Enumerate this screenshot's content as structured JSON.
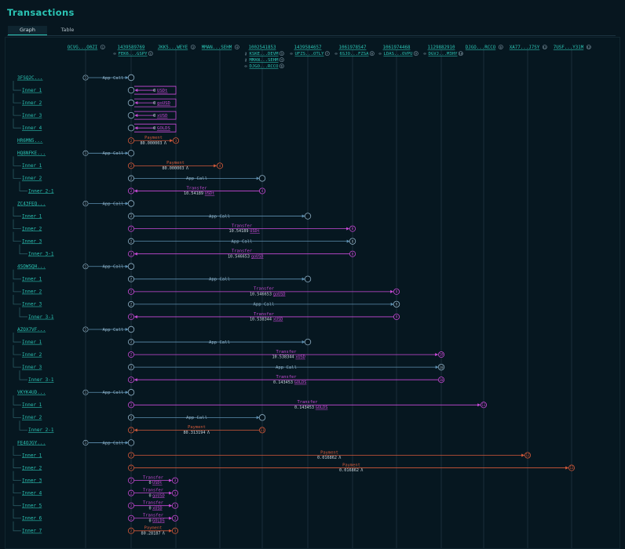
{
  "title": "Transactions",
  "tabs": [
    {
      "label": "Graph",
      "active": true
    },
    {
      "label": "Table",
      "active": false
    }
  ],
  "colors": {
    "accent": "#2bc4b4",
    "app_call": "#5d8fb0",
    "transfer": "#c94ad8",
    "payment": "#d45a3a",
    "lane": "#1a2e3a"
  },
  "accounts": [
    {
      "id": "OCVG...O0ZI",
      "num": "1"
    },
    {
      "id": "1439589769",
      "sub": [
        {
          "icon": "link-icon",
          "text": "FEK6...GSPY",
          "num": "2"
        }
      ]
    },
    {
      "id": "JKK5...WEYE",
      "num": "3"
    },
    {
      "id": "MMAN...SEHM",
      "num": "4"
    },
    {
      "id": "1002541853",
      "sub": [
        {
          "icon": "key-icon",
          "text": "KSKE...DEVM",
          "num": "5"
        },
        {
          "icon": "key-icon",
          "text": "MMAN...SEHM",
          "num": "4"
        },
        {
          "icon": "link-icon",
          "text": "DJGO...RCCO",
          "num": "6"
        }
      ]
    },
    {
      "id": "1439584657",
      "sub": [
        {
          "icon": "link-icon",
          "text": "UFZS...OTLY",
          "num": "7"
        }
      ]
    },
    {
      "id": "1061978547",
      "sub": [
        {
          "icon": "link-icon",
          "text": "6SJO...FZSA",
          "num": "8"
        }
      ]
    },
    {
      "id": "1061974468",
      "sub": [
        {
          "icon": "link-icon",
          "text": "LDAS...OVPU",
          "num": "9"
        }
      ]
    },
    {
      "id": "1129882910",
      "sub": [
        {
          "icon": "link-icon",
          "text": "DGVJ...M3HY",
          "num": "10"
        }
      ]
    },
    {
      "id": "DJGO...RCCO",
      "num": "6"
    },
    {
      "id": "XA77...J7SY",
      "num": "11"
    },
    {
      "id": "7USF...Y31M",
      "num": "12"
    }
  ],
  "rows": [
    {
      "label": "3FSQ2C...",
      "level": 0,
      "kind": "appcall",
      "from": 0,
      "to": 1,
      "text": "App Call"
    },
    {
      "label": "Inner 1",
      "level": 1,
      "kind": "transfer_self",
      "from": 1,
      "amount": "0",
      "asset": "USDt"
    },
    {
      "label": "Inner 2",
      "level": 1,
      "kind": "transfer_self",
      "from": 1,
      "amount": "0",
      "asset": "goUSD"
    },
    {
      "label": "Inner 3",
      "level": 1,
      "kind": "transfer_self",
      "from": 1,
      "amount": "0",
      "asset": "xUSD"
    },
    {
      "label": "Inner 4",
      "level": 1,
      "kind": "transfer_self",
      "from": 1,
      "amount": "0",
      "asset": "GOLDS"
    },
    {
      "label": "HR6MN5...",
      "level": 0,
      "kind": "payment",
      "from": 1,
      "to": 2,
      "s_num": "2",
      "e_num": "3",
      "text": "Payment",
      "amount": "80.000003"
    },
    {
      "label": "HQ8NFKE...",
      "level": 0,
      "kind": "appcall",
      "from": 0,
      "to": 1,
      "text": "App Call"
    },
    {
      "label": "Inner 1",
      "level": 1,
      "kind": "payment",
      "from": 1,
      "to": 3,
      "s_num": "2",
      "e_num": "4",
      "text": "Payment",
      "amount": "80.000003"
    },
    {
      "label": "Inner 2",
      "level": 1,
      "kind": "appcall",
      "from": 1,
      "to": 4,
      "s_num": "2",
      "text": "App Call"
    },
    {
      "label": "Inner 2-1",
      "level": 2,
      "kind": "transfer",
      "from": 4,
      "to": 1,
      "s_num": "4",
      "e_num": "2",
      "text": "Transfer",
      "amount": "10.54189",
      "asset": "USDt"
    },
    {
      "label": "ZC43FEQ...",
      "level": 0,
      "kind": "appcall",
      "from": 0,
      "to": 1,
      "text": "App Call"
    },
    {
      "label": "Inner 1",
      "level": 1,
      "kind": "appcall",
      "from": 1,
      "to": 5,
      "s_num": "2",
      "text": "App Call"
    },
    {
      "label": "Inner 2",
      "level": 1,
      "kind": "transfer",
      "from": 1,
      "to": 6,
      "s_num": "2",
      "e_num": "8",
      "text": "Transfer",
      "amount": "10.54189",
      "asset": "USDt"
    },
    {
      "label": "Inner 3",
      "level": 1,
      "kind": "appcall",
      "from": 1,
      "to": 6,
      "s_num": "2",
      "e_num": "8",
      "text": "App Call"
    },
    {
      "label": "Inner 3-1",
      "level": 2,
      "kind": "transfer",
      "from": 6,
      "to": 1,
      "s_num": "8",
      "e_num": "2",
      "text": "Transfer",
      "amount": "10.546653",
      "asset": "goUSD"
    },
    {
      "label": "4SOWSQH...",
      "level": 0,
      "kind": "appcall",
      "from": 0,
      "to": 1,
      "text": "App Call"
    },
    {
      "label": "Inner 1",
      "level": 1,
      "kind": "appcall",
      "from": 1,
      "to": 5,
      "s_num": "2",
      "text": "App Call"
    },
    {
      "label": "Inner 2",
      "level": 1,
      "kind": "transfer",
      "from": 1,
      "to": 7,
      "s_num": "2",
      "e_num": "9",
      "text": "Transfer",
      "amount": "10.546653",
      "asset": "goUSD"
    },
    {
      "label": "Inner 3",
      "level": 1,
      "kind": "appcall",
      "from": 1,
      "to": 7,
      "s_num": "2",
      "e_num": "9",
      "text": "App Call"
    },
    {
      "label": "Inner 3-1",
      "level": 2,
      "kind": "transfer",
      "from": 7,
      "to": 1,
      "s_num": "9",
      "e_num": "2",
      "text": "Transfer",
      "amount": "10.538344",
      "asset": "xUSD"
    },
    {
      "label": "AZOX7VF...",
      "level": 0,
      "kind": "appcall",
      "from": 0,
      "to": 1,
      "text": "App Call"
    },
    {
      "label": "Inner 1",
      "level": 1,
      "kind": "appcall",
      "from": 1,
      "to": 5,
      "s_num": "2",
      "text": "App Call"
    },
    {
      "label": "Inner 2",
      "level": 1,
      "kind": "transfer",
      "from": 1,
      "to": 8,
      "s_num": "2",
      "e_num": "10",
      "text": "Transfer",
      "amount": "10.538344",
      "asset": "xUSD"
    },
    {
      "label": "Inner 3",
      "level": 1,
      "kind": "appcall",
      "from": 1,
      "to": 8,
      "s_num": "2",
      "e_num": "10",
      "text": "App Call"
    },
    {
      "label": "Inner 3-1",
      "level": 2,
      "kind": "transfer",
      "from": 8,
      "to": 1,
      "s_num": "10",
      "e_num": "2",
      "text": "Transfer",
      "amount": "0.143453",
      "asset": "GOLDS"
    },
    {
      "label": "VKYK4UD...",
      "level": 0,
      "kind": "appcall",
      "from": 0,
      "to": 1,
      "text": "App Call"
    },
    {
      "label": "Inner 1",
      "level": 1,
      "kind": "transfer",
      "from": 1,
      "to": 9,
      "s_num": "2",
      "e_num": "11",
      "text": "Transfer",
      "amount": "0.143453",
      "asset": "GOLDS"
    },
    {
      "label": "Inner 2",
      "level": 1,
      "kind": "appcall",
      "from": 1,
      "to": 4,
      "s_num": "2",
      "text": "App Call"
    },
    {
      "label": "Inner 2-1",
      "level": 2,
      "kind": "payment",
      "from": 4,
      "to": 1,
      "s_num": "11",
      "e_num": "2",
      "text": "Payment",
      "amount": "80.313194"
    },
    {
      "label": "FE4OJGY...",
      "level": 0,
      "kind": "appcall",
      "from": 0,
      "to": 1,
      "text": "App Call"
    },
    {
      "label": "Inner 1",
      "level": 1,
      "kind": "payment",
      "from": 1,
      "to": 10,
      "s_num": "2",
      "e_num": "12",
      "text": "Payment",
      "amount": "0.016862"
    },
    {
      "label": "Inner 2",
      "level": 1,
      "kind": "payment",
      "from": 1,
      "to": 11,
      "s_num": "2",
      "e_num": "13",
      "text": "Payment",
      "amount": "0.016862"
    },
    {
      "label": "Inner 3",
      "level": 1,
      "kind": "transfer_short",
      "from": 1,
      "to": 2,
      "s_num": "2",
      "e_num": "3",
      "text": "Transfer",
      "amount": "0",
      "asset": "USDt"
    },
    {
      "label": "Inner 4",
      "level": 1,
      "kind": "transfer_short",
      "from": 1,
      "to": 2,
      "s_num": "2",
      "e_num": "3",
      "text": "Transfer",
      "amount": "0",
      "asset": "goUSD"
    },
    {
      "label": "Inner 5",
      "level": 1,
      "kind": "transfer_short",
      "from": 1,
      "to": 2,
      "s_num": "2",
      "e_num": "3",
      "text": "Transfer",
      "amount": "0",
      "asset": "xUSD"
    },
    {
      "label": "Inner 6",
      "level": 1,
      "kind": "transfer_short",
      "from": 1,
      "to": 2,
      "s_num": "2",
      "e_num": "3",
      "text": "Transfer",
      "amount": "0",
      "asset": "GOLDS"
    },
    {
      "label": "Inner 7",
      "level": 1,
      "kind": "payment_short",
      "from": 1,
      "to": 2,
      "s_num": "2",
      "e_num": "3",
      "text": "Payment",
      "amount": "80.28187"
    }
  ]
}
